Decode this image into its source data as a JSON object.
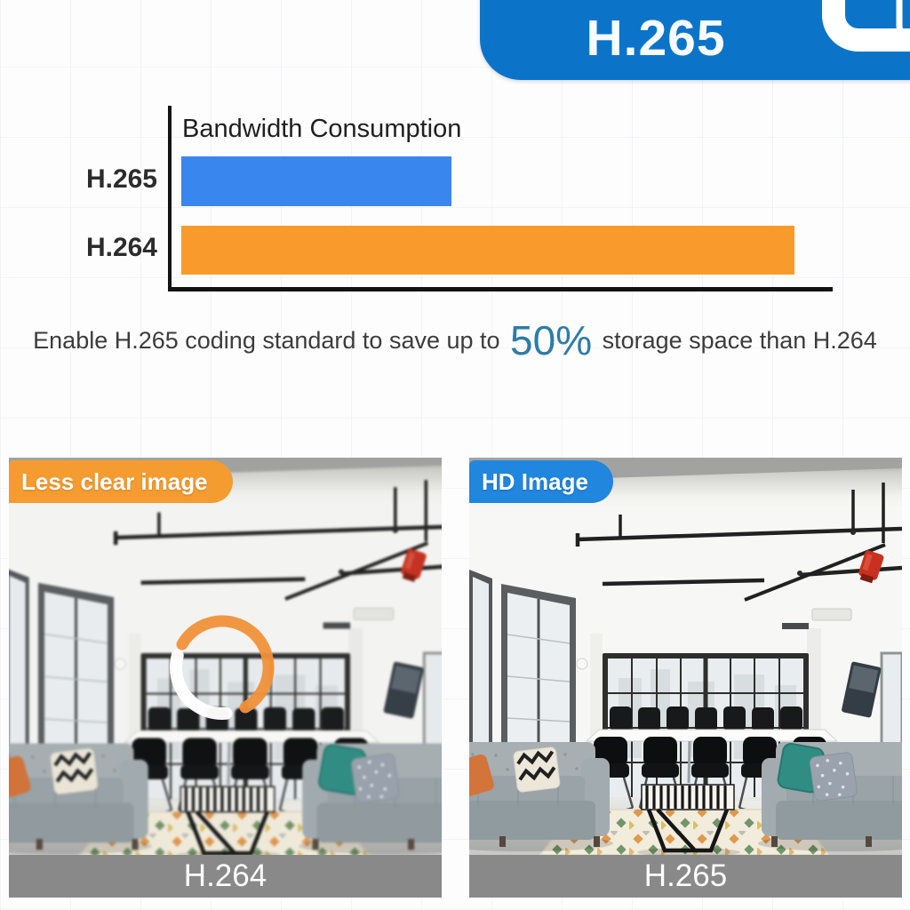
{
  "banner": {
    "title": "H.265"
  },
  "chart_data": {
    "type": "bar",
    "orientation": "horizontal",
    "title": "Bandwidth Consumption",
    "categories": [
      "H.265",
      "H.264"
    ],
    "values": [
      44,
      100
    ],
    "unit": "relative bandwidth (% of H.264)",
    "colors": [
      "#3a86ef",
      "#f89b2c"
    ],
    "xlim": [
      0,
      100
    ],
    "grid": false,
    "legend": false,
    "note": "H.265 bar is about 44% of the H.264 bar length, implying ~50% bandwidth saving"
  },
  "caption": {
    "prefix": "Enable H.265 coding standard to save up to ",
    "highlight": "50%",
    "suffix": " storage space than H.264",
    "highlight_color": "#2d7ca6"
  },
  "comparison": {
    "left": {
      "badge": "Less clear image",
      "badge_color": "#f59c30",
      "label": "H.264",
      "overlay_icon": "loading-spinner-icon",
      "description": "blurred loft living room photo with buffering spinner"
    },
    "right": {
      "badge": "HD Image",
      "badge_color": "#2186dd",
      "label": "H.265",
      "description": "sharp loft living room photo"
    }
  },
  "colors": {
    "banner_blue": "#0b74c9",
    "bar_blue": "#3a86ef",
    "bar_orange": "#f89b2c",
    "badge_orange": "#f59c30",
    "badge_blue": "#2186dd",
    "caption_highlight": "#2d7ca6",
    "photo_label_bar_gray": "#8d8d8d"
  }
}
